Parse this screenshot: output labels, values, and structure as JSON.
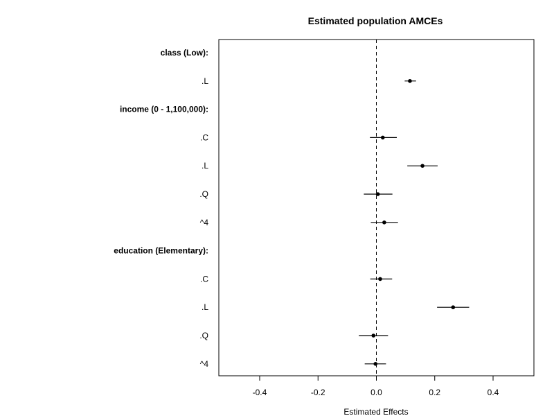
{
  "chart_data": {
    "type": "scatter",
    "title": "Estimated population AMCEs",
    "xlabel": "Estimated Effects",
    "ylabel": "",
    "xlim": [
      -0.54,
      0.54
    ],
    "xticks": [
      -0.4,
      -0.2,
      0.0,
      0.2,
      0.4
    ],
    "xtick_labels": [
      "-0.4",
      "-0.2",
      "0.0",
      "0.2",
      "0.4"
    ],
    "reference_line": 0,
    "rows": [
      {
        "label": "class (Low):",
        "group": true
      },
      {
        "label": ".L",
        "estimate": 0.115,
        "lower": 0.097,
        "upper": 0.136
      },
      {
        "label": "income (0 - 1,100,000):",
        "group": true
      },
      {
        "label": ".C",
        "estimate": 0.022,
        "lower": -0.022,
        "upper": 0.07
      },
      {
        "label": ".L",
        "estimate": 0.158,
        "lower": 0.106,
        "upper": 0.21
      },
      {
        "label": ".Q",
        "estimate": 0.005,
        "lower": -0.043,
        "upper": 0.055
      },
      {
        "label": "^4",
        "estimate": 0.027,
        "lower": -0.019,
        "upper": 0.074
      },
      {
        "label": "education (Elementary):",
        "group": true
      },
      {
        "label": ".C",
        "estimate": 0.013,
        "lower": -0.021,
        "upper": 0.054
      },
      {
        "label": ".L",
        "estimate": 0.263,
        "lower": 0.208,
        "upper": 0.318
      },
      {
        "label": ".Q",
        "estimate": -0.01,
        "lower": -0.06,
        "upper": 0.04
      },
      {
        "label": "^4",
        "estimate": -0.003,
        "lower": -0.04,
        "upper": 0.033
      }
    ]
  }
}
